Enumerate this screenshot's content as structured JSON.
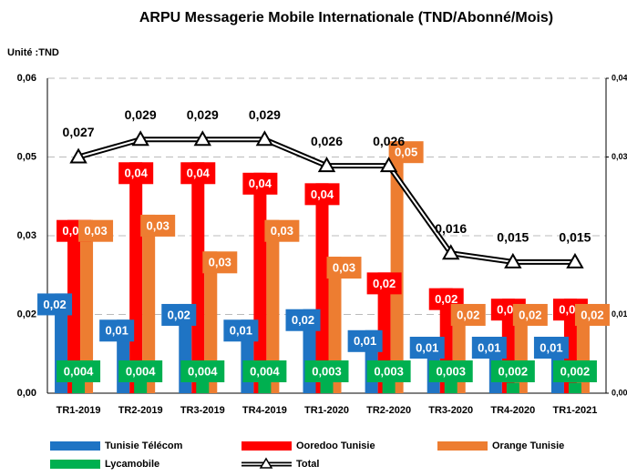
{
  "chart_data": {
    "type": "bar",
    "title": "ARPU Messagerie Mobile Internationale (TND/Abonné/Mois)",
    "unit_label": "Unité :TND",
    "categories": [
      "TR1-2019",
      "TR2-2019",
      "TR3-2019",
      "TR4-2019",
      "TR1-2020",
      "TR2-2020",
      "TR3-2020",
      "TR4-2020",
      "TR1-2021"
    ],
    "series": [
      {
        "name": "Tunisie Télécom",
        "color": "#1f74c4",
        "values": [
          0.019,
          0.014,
          0.017,
          0.014,
          0.016,
          0.012,
          0.01,
          0.008,
          0.008
        ],
        "value_labels": [
          "0,02",
          "0,01",
          "0,02",
          "0,01",
          "0,02",
          "0,01",
          "0,01",
          "0,01",
          "0,01"
        ]
      },
      {
        "name": "Ooredoo Tunisie",
        "color": "#ff0000",
        "values": [
          0.033,
          0.044,
          0.044,
          0.042,
          0.04,
          0.023,
          0.02,
          0.018,
          0.018
        ],
        "value_labels": [
          "0,03",
          "0,04",
          "0,04",
          "0,04",
          "0,04",
          "0,02",
          "0,02",
          "0,02",
          "0,02"
        ]
      },
      {
        "name": "Orange Tunisie",
        "color": "#ed7d31",
        "values": [
          0.033,
          0.034,
          0.027,
          0.033,
          0.026,
          0.048,
          0.017,
          0.017,
          0.017
        ],
        "value_labels": [
          "0,03",
          "0,03",
          "0,03",
          "0,03",
          "0,03",
          "0,05",
          "0,02",
          "0,02",
          "0,02"
        ]
      },
      {
        "name": "Lycamobile",
        "color": "#00b050",
        "values": [
          0.004,
          0.004,
          0.004,
          0.004,
          0.003,
          0.003,
          0.003,
          0.002,
          0.002
        ],
        "value_labels": [
          "0,004",
          "0,004",
          "0,004",
          "0,004",
          "0,003",
          "0,003",
          "0,003",
          "0,002",
          "0,002"
        ]
      },
      {
        "name": "Total",
        "type": "line",
        "axis": "y2",
        "color": "#000000",
        "values": [
          0.027,
          0.029,
          0.029,
          0.029,
          0.026,
          0.026,
          0.016,
          0.015,
          0.015
        ],
        "value_labels": [
          "0,027",
          "0,029",
          "0,029",
          "0,029",
          "0,026",
          "0,026",
          "0,016",
          "0,015",
          "0,015"
        ]
      }
    ],
    "ylim": [
      0,
      0.06
    ],
    "yticks": [
      {
        "value": 0,
        "label": "0,00"
      },
      {
        "value": 0.015,
        "label": "0,02"
      },
      {
        "value": 0.03,
        "label": "0,03"
      },
      {
        "value": 0.045,
        "label": "0,05"
      },
      {
        "value": 0.06,
        "label": "0,06"
      }
    ],
    "y2lim": [
      0,
      0.036
    ],
    "y2ticks": [
      {
        "value": 0,
        "label": "0,00"
      },
      {
        "value": 0.009,
        "label": "0,01"
      },
      {
        "value": 0.027,
        "label": "0,03"
      },
      {
        "value": 0.036,
        "label": "0,04"
      }
    ],
    "grid": true
  }
}
